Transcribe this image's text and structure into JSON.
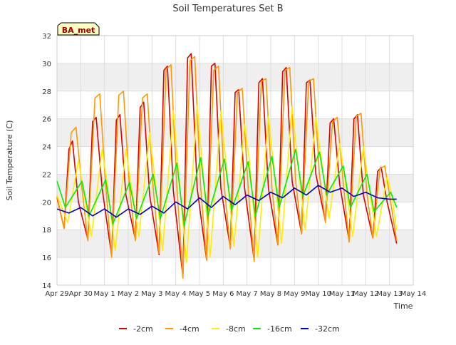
{
  "chart_data": {
    "type": "line",
    "title": "Soil Temperatures Set B",
    "xlabel": "Time",
    "ylabel": "Soil Temperature (C)",
    "station_label": "BA_met",
    "ylim": [
      14,
      32
    ],
    "yticks": [
      14,
      16,
      18,
      20,
      22,
      24,
      26,
      28,
      30,
      32
    ],
    "xlim": [
      0,
      15
    ],
    "xticks": [
      {
        "x": 0,
        "label": "Apr 29"
      },
      {
        "x": 1,
        "label": "Apr 30"
      },
      {
        "x": 2,
        "label": "May 1"
      },
      {
        "x": 3,
        "label": "May 2"
      },
      {
        "x": 4,
        "label": "May 3"
      },
      {
        "x": 5,
        "label": "May 4"
      },
      {
        "x": 6,
        "label": "May 5"
      },
      {
        "x": 7,
        "label": "May 6"
      },
      {
        "x": 8,
        "label": "May 7"
      },
      {
        "x": 9,
        "label": "May 8"
      },
      {
        "x": 10,
        "label": "May 9"
      },
      {
        "x": 11,
        "label": "May 10"
      },
      {
        "x": 12,
        "label": "May 11"
      },
      {
        "x": 13,
        "label": "May 12"
      },
      {
        "x": 14,
        "label": "May 13"
      },
      {
        "x": 15,
        "label": "May 14"
      }
    ],
    "grid": true,
    "legend_position": "bottom",
    "series": [
      {
        "name": "-2cm",
        "color": "#dd0000",
        "x": [
          0.0,
          0.3,
          0.5,
          0.65,
          0.9,
          1.3,
          1.5,
          1.65,
          1.9,
          2.3,
          2.5,
          2.65,
          2.9,
          3.3,
          3.5,
          3.65,
          3.9,
          4.3,
          4.5,
          4.65,
          4.9,
          5.3,
          5.5,
          5.65,
          5.9,
          6.3,
          6.5,
          6.65,
          6.9,
          7.3,
          7.5,
          7.65,
          7.9,
          8.3,
          8.5,
          8.65,
          8.9,
          9.3,
          9.5,
          9.65,
          9.9,
          10.3,
          10.5,
          10.65,
          10.9,
          11.3,
          11.5,
          11.65,
          11.9,
          12.3,
          12.5,
          12.65,
          12.9,
          13.3,
          13.5,
          13.65,
          13.9,
          14.3
        ],
        "y": [
          20.3,
          18.1,
          23.8,
          24.4,
          20.0,
          17.3,
          25.8,
          26.1,
          21.0,
          16.1,
          25.9,
          26.3,
          20.5,
          17.3,
          26.8,
          27.2,
          20.5,
          16.2,
          29.5,
          29.8,
          20.8,
          14.6,
          30.4,
          30.7,
          21.0,
          15.8,
          29.8,
          30.0,
          21.0,
          16.7,
          27.9,
          28.1,
          21.0,
          15.8,
          28.6,
          28.9,
          21.0,
          16.9,
          29.4,
          29.7,
          21.5,
          17.7,
          28.6,
          28.8,
          22.0,
          18.6,
          25.7,
          26.0,
          21.3,
          17.2,
          26.0,
          26.3,
          20.5,
          17.4,
          22.2,
          22.5,
          20.0,
          17.0
        ]
      },
      {
        "name": "-4cm",
        "color": "#ff9900",
        "x": [
          0.0,
          0.3,
          0.6,
          0.8,
          1.05,
          1.3,
          1.6,
          1.8,
          2.05,
          2.3,
          2.6,
          2.8,
          3.05,
          3.3,
          3.6,
          3.8,
          4.05,
          4.3,
          4.6,
          4.8,
          5.05,
          5.3,
          5.6,
          5.8,
          6.05,
          6.3,
          6.6,
          6.8,
          7.05,
          7.3,
          7.6,
          7.8,
          8.05,
          8.3,
          8.6,
          8.8,
          9.05,
          9.3,
          9.6,
          9.8,
          10.05,
          10.3,
          10.6,
          10.8,
          11.05,
          11.3,
          11.6,
          11.8,
          12.05,
          12.3,
          12.6,
          12.8,
          13.05,
          13.3,
          13.6,
          13.8,
          14.05,
          14.3
        ],
        "y": [
          20.4,
          18.1,
          25.0,
          25.4,
          21.0,
          17.2,
          27.5,
          27.8,
          21.2,
          16.0,
          27.7,
          28.0,
          21.0,
          17.2,
          27.5,
          27.8,
          21.0,
          16.3,
          29.6,
          29.9,
          21.0,
          14.5,
          30.2,
          30.5,
          21.0,
          15.8,
          29.5,
          29.8,
          21.0,
          16.6,
          27.9,
          28.2,
          21.0,
          15.7,
          28.7,
          28.9,
          21.0,
          16.9,
          29.5,
          29.7,
          21.5,
          17.7,
          28.7,
          28.9,
          22.0,
          18.5,
          25.8,
          26.1,
          21.4,
          17.1,
          26.2,
          26.4,
          20.6,
          17.4,
          22.4,
          22.6,
          20.0,
          17.2
        ]
      },
      {
        "name": "-8cm",
        "color": "#ffee00",
        "x": [
          0.0,
          0.45,
          0.9,
          1.1,
          1.45,
          1.9,
          2.1,
          2.45,
          2.9,
          3.1,
          3.45,
          3.9,
          4.1,
          4.45,
          4.9,
          5.1,
          5.45,
          5.9,
          6.1,
          6.45,
          6.9,
          7.1,
          7.45,
          7.9,
          8.1,
          8.45,
          8.9,
          9.1,
          9.45,
          9.9,
          10.1,
          10.45,
          10.9,
          11.1,
          11.45,
          11.9,
          12.1,
          12.45,
          12.9,
          13.1,
          13.45,
          13.9,
          14.1,
          14.3
        ],
        "y": [
          20.5,
          18.5,
          23.0,
          21.0,
          17.5,
          23.8,
          21.5,
          16.5,
          23.8,
          21.5,
          17.5,
          25.0,
          22.0,
          16.5,
          26.6,
          22.5,
          15.6,
          27.0,
          23.0,
          16.0,
          26.6,
          23.0,
          16.8,
          25.6,
          23.0,
          16.0,
          26.2,
          23.0,
          17.0,
          26.9,
          23.5,
          18.0,
          26.1,
          23.5,
          18.8,
          24.2,
          22.0,
          17.5,
          24.0,
          21.5,
          17.5,
          21.8,
          20.5,
          18.0
        ]
      },
      {
        "name": "-16cm",
        "color": "#00ee00",
        "x": [
          0.0,
          0.35,
          1.05,
          1.35,
          2.05,
          2.35,
          3.05,
          3.35,
          4.05,
          4.35,
          5.05,
          5.35,
          6.05,
          6.35,
          7.05,
          7.35,
          8.05,
          8.35,
          9.05,
          9.35,
          10.05,
          10.35,
          11.05,
          11.35,
          12.05,
          12.35,
          13.05,
          13.35,
          14.05,
          14.3
        ],
        "y": [
          21.5,
          19.6,
          21.5,
          19.0,
          21.6,
          18.4,
          21.4,
          18.8,
          22.0,
          18.8,
          22.8,
          18.3,
          23.2,
          19.0,
          23.1,
          19.4,
          22.9,
          19.0,
          23.3,
          19.6,
          23.8,
          20.4,
          23.6,
          20.5,
          22.6,
          19.6,
          22.0,
          19.3,
          20.7,
          19.6
        ]
      },
      {
        "name": "-32cm",
        "color": "#0000cc",
        "x": [
          0.0,
          0.5,
          1.0,
          1.5,
          2.0,
          2.5,
          3.0,
          3.5,
          4.0,
          4.5,
          5.0,
          5.5,
          6.0,
          6.5,
          7.0,
          7.5,
          8.0,
          8.5,
          9.0,
          9.5,
          10.0,
          10.5,
          11.0,
          11.5,
          12.0,
          12.5,
          13.0,
          13.5,
          14.0,
          14.3
        ],
        "y": [
          19.5,
          19.2,
          19.6,
          19.0,
          19.5,
          18.9,
          19.5,
          19.1,
          19.7,
          19.2,
          20.0,
          19.5,
          20.3,
          19.6,
          20.4,
          19.8,
          20.5,
          20.1,
          20.7,
          20.3,
          21.0,
          20.5,
          21.2,
          20.7,
          21.0,
          20.4,
          20.7,
          20.3,
          20.2,
          20.2
        ]
      }
    ]
  }
}
